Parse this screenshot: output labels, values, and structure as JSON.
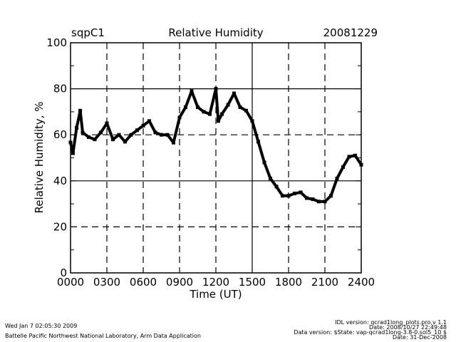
{
  "chart_data": {
    "type": "scatter",
    "site": "sqpC1",
    "title": "Relative Humidity",
    "date": "20081229",
    "xlabel": "Time (UT)",
    "ylabel": "Relative Humidity, %",
    "xlim": [
      0,
      24
    ],
    "ylim": [
      0,
      100
    ],
    "x_ticks": [
      {
        "value": 0,
        "label": "0000"
      },
      {
        "value": 3,
        "label": "0300"
      },
      {
        "value": 6,
        "label": "0600"
      },
      {
        "value": 9,
        "label": "0900"
      },
      {
        "value": 12,
        "label": "1200"
      },
      {
        "value": 15,
        "label": "1500"
      },
      {
        "value": 18,
        "label": "1800"
      },
      {
        "value": 21,
        "label": "2100"
      },
      {
        "value": 24,
        "label": "2400"
      }
    ],
    "y_ticks": [
      {
        "value": 0,
        "label": "0"
      },
      {
        "value": 20,
        "label": "20"
      },
      {
        "value": 40,
        "label": "40"
      },
      {
        "value": 60,
        "label": "60"
      },
      {
        "value": 80,
        "label": "80"
      },
      {
        "value": 100,
        "label": "100"
      }
    ],
    "grid": true,
    "series": [
      {
        "name": "Relative Humidity",
        "color": "#000000",
        "x": [
          0.0,
          0.2,
          0.5,
          0.8,
          1.0,
          1.5,
          2.0,
          2.5,
          3.0,
          3.5,
          4.0,
          4.5,
          5.0,
          5.5,
          6.0,
          6.5,
          7.0,
          7.5,
          8.0,
          8.5,
          9.0,
          9.5,
          10.0,
          10.5,
          11.0,
          11.5,
          12.0,
          12.2,
          12.5,
          13.0,
          13.5,
          14.0,
          14.5,
          15.0,
          15.5,
          16.0,
          16.5,
          17.0,
          17.5,
          18.0,
          18.5,
          19.0,
          19.5,
          20.0,
          20.5,
          21.0,
          21.5,
          22.0,
          22.5,
          23.0,
          23.5,
          24.0
        ],
        "y": [
          56.7,
          52,
          63,
          70.5,
          61,
          59,
          58,
          61,
          65,
          58,
          60,
          57,
          60,
          62,
          64,
          66,
          61,
          60,
          60,
          56.6,
          67.5,
          72,
          79,
          72,
          70,
          69,
          80,
          66,
          69,
          73,
          78,
          72,
          70.5,
          66,
          57,
          48,
          41,
          37.5,
          33.5,
          33.5,
          34.5,
          35,
          32.5,
          32,
          31,
          31,
          33.5,
          41,
          46,
          50.5,
          51,
          47
        ]
      }
    ]
  },
  "footer": {
    "timestamp": "Wed Jan  7 02:05:30 2009",
    "organization": "Battelle Pacific Northwest National Laboratory, Arm Data Application",
    "idl_version": "IDL version: qcrad1long_plots.pro,v 1.1",
    "idl_date": "Date: 2008/10/27 22:49:48",
    "data_version": "Data version: $State: vap-qcrad1long-3.8-0.sol5_10 $",
    "data_date": "Date: 31-Dec-2008"
  }
}
